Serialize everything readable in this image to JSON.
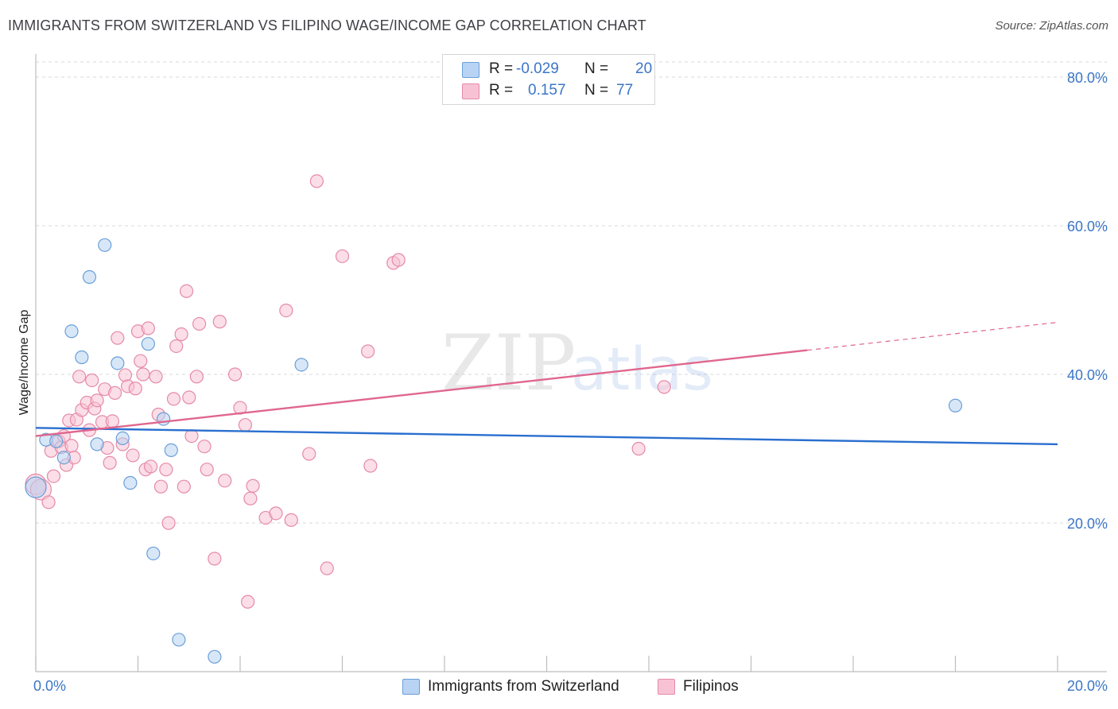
{
  "title": "IMMIGRANTS FROM SWITZERLAND VS FILIPINO WAGE/INCOME GAP CORRELATION CHART",
  "source": "Source: ZipAtlas.com",
  "watermark": {
    "zip": "ZIP",
    "atlas": "atlas"
  },
  "colors": {
    "blue_fill": "#b8d3f3",
    "blue_stroke": "#6a9fd8",
    "blue_line": "#2a6fcf",
    "pink_fill": "#f7c3d4",
    "pink_stroke": "#e58aa8",
    "pink_line": "#e0668e",
    "tick_text": "#3b76c8",
    "grid": "#d9d9d9"
  },
  "legend": {
    "rows": [
      {
        "r_label": "R =",
        "r_value": "-0.029",
        "n_label": "N =",
        "n_value": "20",
        "series": "blue"
      },
      {
        "r_label": "R =",
        "r_value": "0.157",
        "n_label": "N =",
        "n_value": "77",
        "series": "pink"
      }
    ]
  },
  "bottom_legend": [
    {
      "label": "Immigrants from Switzerland",
      "series": "blue"
    },
    {
      "label": "Filipinos",
      "series": "pink"
    }
  ],
  "chart_data": {
    "type": "scatter",
    "title": "IMMIGRANTS FROM SWITZERLAND VS FILIPINO WAGE/INCOME GAP CORRELATION CHART",
    "xlabel": "",
    "ylabel": "Wage/Income Gap",
    "xlim": [
      0,
      20
    ],
    "ylim": [
      0,
      80
    ],
    "x_ticks": [
      0,
      20
    ],
    "x_tick_labels": [
      "0.0%",
      "20.0%"
    ],
    "y_ticks": [
      20,
      40,
      60,
      80
    ],
    "y_tick_labels": [
      "20.0%",
      "40.0%",
      "60.0%",
      "80.0%"
    ],
    "x_minor_ticks": [
      0,
      2,
      4,
      6,
      8,
      10,
      12,
      14,
      16,
      18,
      20
    ],
    "grid": true,
    "series": [
      {
        "name": "Immigrants from Switzerland",
        "color": "blue",
        "trend": {
          "x0": 0,
          "y0": 32.8,
          "x1": 20,
          "y1": 30.6,
          "solid_until": 20
        },
        "points": [
          [
            0.0,
            24.8,
            "large"
          ],
          [
            0.2,
            31.2
          ],
          [
            0.4,
            31.0
          ],
          [
            0.55,
            28.8
          ],
          [
            0.7,
            45.8
          ],
          [
            0.9,
            42.3
          ],
          [
            1.05,
            53.1
          ],
          [
            1.2,
            30.6
          ],
          [
            1.35,
            57.4
          ],
          [
            1.6,
            41.5
          ],
          [
            1.7,
            31.4
          ],
          [
            1.85,
            25.4
          ],
          [
            2.2,
            44.1
          ],
          [
            2.3,
            15.9
          ],
          [
            2.5,
            34.0
          ],
          [
            2.65,
            29.8
          ],
          [
            2.8,
            4.3
          ],
          [
            3.5,
            2.0
          ],
          [
            5.2,
            41.3
          ],
          [
            18.0,
            35.8
          ]
        ]
      },
      {
        "name": "Filipinos",
        "color": "pink",
        "trend": {
          "x0": 0,
          "y0": 31.7,
          "x1": 20,
          "y1": 47.0,
          "solid_until": 15.1
        },
        "points": [
          [
            0.0,
            25.2,
            "large"
          ],
          [
            0.1,
            24.5,
            "large"
          ],
          [
            0.25,
            22.8
          ],
          [
            0.3,
            29.7
          ],
          [
            0.35,
            26.3
          ],
          [
            0.45,
            31.0
          ],
          [
            0.5,
            30.2
          ],
          [
            0.55,
            31.7
          ],
          [
            0.6,
            27.8
          ],
          [
            0.65,
            33.8
          ],
          [
            0.7,
            30.4
          ],
          [
            0.75,
            28.8
          ],
          [
            0.8,
            33.9
          ],
          [
            0.85,
            39.7
          ],
          [
            0.9,
            35.2
          ],
          [
            1.0,
            36.2
          ],
          [
            1.05,
            32.5
          ],
          [
            1.1,
            39.2
          ],
          [
            1.15,
            35.4
          ],
          [
            1.2,
            36.5
          ],
          [
            1.3,
            33.6
          ],
          [
            1.35,
            38.0
          ],
          [
            1.4,
            30.1
          ],
          [
            1.45,
            28.1
          ],
          [
            1.5,
            33.7
          ],
          [
            1.55,
            37.5
          ],
          [
            1.6,
            44.9
          ],
          [
            1.7,
            30.6
          ],
          [
            1.75,
            39.9
          ],
          [
            1.8,
            38.4
          ],
          [
            1.9,
            29.1
          ],
          [
            1.95,
            38.1
          ],
          [
            2.0,
            45.8
          ],
          [
            2.05,
            41.8
          ],
          [
            2.1,
            40.0
          ],
          [
            2.15,
            27.2
          ],
          [
            2.2,
            46.2
          ],
          [
            2.25,
            27.6
          ],
          [
            2.35,
            39.7
          ],
          [
            2.4,
            34.6
          ],
          [
            2.45,
            24.9
          ],
          [
            2.55,
            27.2
          ],
          [
            2.6,
            20.0
          ],
          [
            2.7,
            36.7
          ],
          [
            2.75,
            43.8
          ],
          [
            2.85,
            45.4
          ],
          [
            2.9,
            24.9
          ],
          [
            2.95,
            51.2
          ],
          [
            3.0,
            36.9
          ],
          [
            3.05,
            31.7
          ],
          [
            3.15,
            39.7
          ],
          [
            3.2,
            46.8
          ],
          [
            3.3,
            30.3
          ],
          [
            3.35,
            27.2
          ],
          [
            3.5,
            15.2
          ],
          [
            3.6,
            47.1
          ],
          [
            3.7,
            25.7
          ],
          [
            3.9,
            40.0
          ],
          [
            4.0,
            35.5
          ],
          [
            4.1,
            33.2
          ],
          [
            4.15,
            9.4
          ],
          [
            4.2,
            23.3
          ],
          [
            4.25,
            25.0
          ],
          [
            4.5,
            20.7
          ],
          [
            4.7,
            21.3
          ],
          [
            4.9,
            48.6
          ],
          [
            5.0,
            20.4
          ],
          [
            5.35,
            29.3
          ],
          [
            5.5,
            66.0
          ],
          [
            5.7,
            13.9
          ],
          [
            6.0,
            55.9
          ],
          [
            6.5,
            43.1
          ],
          [
            6.55,
            27.7
          ],
          [
            7.0,
            55.0
          ],
          [
            7.1,
            55.4
          ],
          [
            11.8,
            30.0
          ],
          [
            12.3,
            38.3
          ]
        ]
      }
    ]
  }
}
